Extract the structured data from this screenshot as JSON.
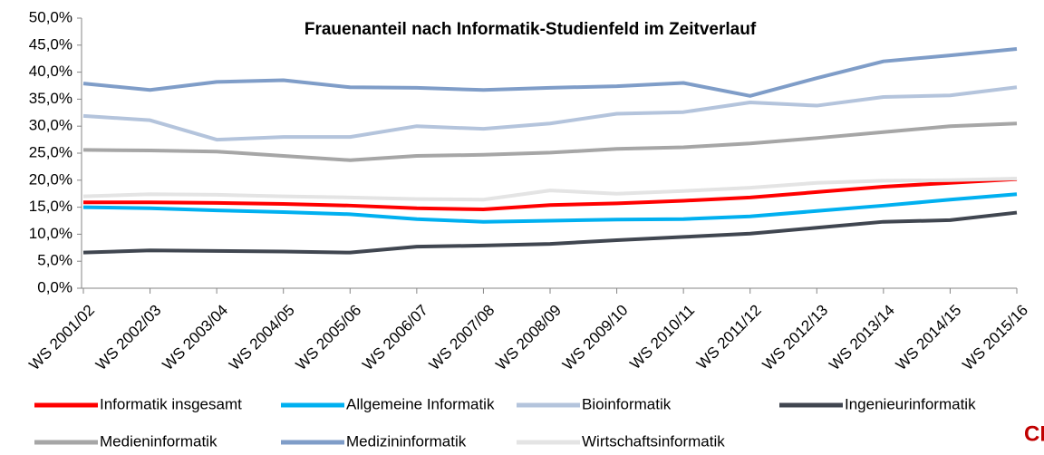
{
  "chart_data": {
    "type": "line",
    "title": "Frauenanteil nach Informatik-Studienfeld im Zeitverlauf",
    "categories": [
      "WS 2001/02",
      "WS 2002/03",
      "WS 2003/04",
      "WS 2004/05",
      "WS 2005/06",
      "WS 2006/07",
      "WS 2007/08",
      "WS 2008/09",
      "WS 2009/10",
      "WS 2010/11",
      "WS 2011/12",
      "WS 2012/13",
      "WS 2013/14",
      "WS 2014/15",
      "WS 2015/16"
    ],
    "series": [
      {
        "name": "Informatik insgesamt",
        "color": "#ff0000",
        "values": [
          15.9,
          15.9,
          15.8,
          15.6,
          15.3,
          14.8,
          14.6,
          15.4,
          15.7,
          16.2,
          16.8,
          17.8,
          18.8,
          19.5,
          20.2
        ]
      },
      {
        "name": "Allgemeine Informatik",
        "color": "#00b0f0",
        "values": [
          15.0,
          14.8,
          14.4,
          14.1,
          13.7,
          12.8,
          12.3,
          12.5,
          12.7,
          12.8,
          13.3,
          14.3,
          15.3,
          16.4,
          17.4
        ]
      },
      {
        "name": "Bioinformatik",
        "color": "#b4c4dc",
        "values": [
          31.9,
          31.1,
          27.5,
          28.0,
          28.0,
          30.0,
          29.5,
          30.5,
          32.3,
          32.6,
          34.4,
          33.8,
          35.4,
          35.7,
          37.2
        ]
      },
      {
        "name": "Ingenieurinformatik",
        "color": "#404650",
        "values": [
          6.6,
          7.0,
          6.9,
          6.8,
          6.6,
          7.7,
          7.9,
          8.2,
          8.9,
          9.5,
          10.1,
          11.2,
          12.3,
          12.6,
          14.0
        ]
      },
      {
        "name": "Medieninformatik",
        "color": "#a6a6a6",
        "values": [
          25.6,
          25.5,
          25.3,
          24.5,
          23.7,
          24.5,
          24.7,
          25.1,
          25.8,
          26.1,
          26.8,
          27.8,
          28.9,
          30.0,
          30.5
        ]
      },
      {
        "name": "Medizininformatik",
        "color": "#7f9dc8",
        "values": [
          37.9,
          36.7,
          38.2,
          38.5,
          37.2,
          37.1,
          36.7,
          37.1,
          37.4,
          38.0,
          35.6,
          38.9,
          42.0,
          43.1,
          44.3
        ]
      },
      {
        "name": "Wirtschaftsinformatik",
        "color": "#e4e4e4",
        "values": [
          17.0,
          17.4,
          17.3,
          17.0,
          16.8,
          16.5,
          16.4,
          18.1,
          17.5,
          18.0,
          18.6,
          19.5,
          19.9,
          20.0,
          20.3
        ]
      }
    ],
    "ylim": [
      0,
      50
    ],
    "yticks": [
      {
        "value": 0,
        "label": "0,0%"
      },
      {
        "value": 5,
        "label": "5,0%"
      },
      {
        "value": 10,
        "label": "10,0%"
      },
      {
        "value": 15,
        "label": "15,0%"
      },
      {
        "value": 20,
        "label": "20,0%"
      },
      {
        "value": 25,
        "label": "25,0%"
      },
      {
        "value": 30,
        "label": "30,0%"
      },
      {
        "value": 35,
        "label": "35,0%"
      },
      {
        "value": 40,
        "label": "40,0%"
      },
      {
        "value": 45,
        "label": "45,0%"
      },
      {
        "value": 50,
        "label": "50,0%"
      }
    ],
    "grid": false,
    "legend": "bottom"
  },
  "logo": "CH"
}
